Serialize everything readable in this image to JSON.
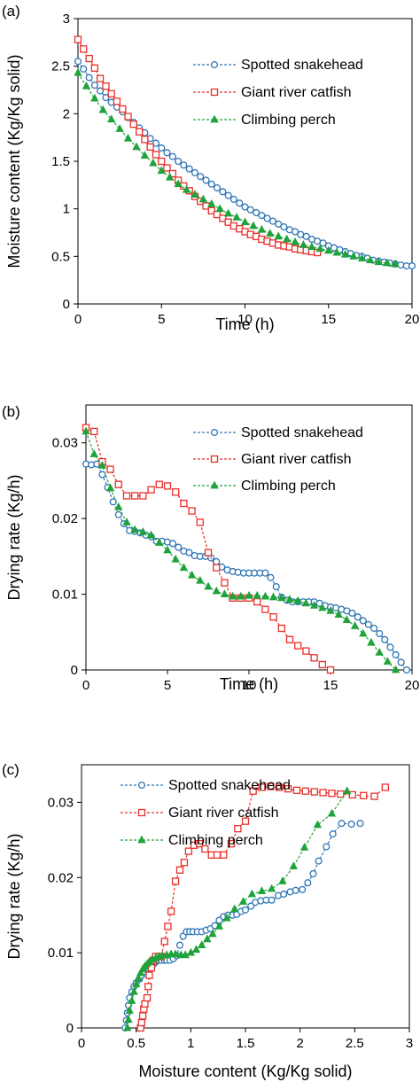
{
  "series_styles": [
    {
      "name": "Spotted snakehead",
      "color": "#2E75B6",
      "marker": "circle"
    },
    {
      "name": "Giant river catfish",
      "color": "#E8302A",
      "marker": "square"
    },
    {
      "name": "Climbing perch",
      "color": "#1FA33B",
      "marker": "triangle"
    }
  ],
  "chart_data": [
    {
      "panel": "(a)",
      "type": "line",
      "xlabel": "Time (h)",
      "ylabel": "Moisture content (Kg/Kg solid)",
      "xlim": [
        0,
        20
      ],
      "ylim": [
        0,
        3
      ],
      "xticks": [
        "0",
        "5",
        "10",
        "15",
        "20"
      ],
      "yticks": [
        "0",
        "0.5",
        "1",
        "1.5",
        "2",
        "2.5",
        "3"
      ],
      "legend": "top-right",
      "grid": false,
      "series": [
        {
          "name": "Spotted snakehead",
          "x": [
            0,
            0.33,
            0.67,
            1,
            1.33,
            1.67,
            2,
            2.33,
            2.67,
            3,
            3.33,
            3.67,
            4,
            4.33,
            4.67,
            5,
            5.33,
            5.67,
            6,
            6.33,
            6.67,
            7,
            7.33,
            7.67,
            8,
            8.33,
            8.67,
            9,
            9.33,
            9.67,
            10,
            10.33,
            10.67,
            11,
            11.33,
            11.67,
            12,
            12.33,
            12.67,
            13,
            13.33,
            13.67,
            14,
            14.33,
            14.67,
            15,
            15.33,
            15.67,
            16,
            16.33,
            16.67,
            17,
            17.33,
            17.67,
            18,
            18.33,
            18.67,
            19,
            19.33,
            19.67,
            20
          ],
          "y": [
            2.55,
            2.47,
            2.38,
            2.3,
            2.24,
            2.17,
            2.12,
            2.07,
            2.02,
            1.96,
            1.91,
            1.85,
            1.8,
            1.74,
            1.69,
            1.64,
            1.59,
            1.55,
            1.5,
            1.46,
            1.42,
            1.38,
            1.34,
            1.3,
            1.26,
            1.22,
            1.18,
            1.14,
            1.1,
            1.06,
            1.02,
            0.99,
            0.96,
            0.93,
            0.9,
            0.87,
            0.84,
            0.81,
            0.78,
            0.76,
            0.73,
            0.71,
            0.68,
            0.66,
            0.64,
            0.61,
            0.59,
            0.57,
            0.55,
            0.53,
            0.51,
            0.5,
            0.48,
            0.46,
            0.45,
            0.44,
            0.43,
            0.42,
            0.41,
            0.4,
            0.4
          ]
        },
        {
          "name": "Giant river catfish",
          "x": [
            0,
            0.33,
            0.67,
            1,
            1.33,
            1.67,
            2,
            2.33,
            2.67,
            3,
            3.33,
            3.67,
            4,
            4.33,
            4.67,
            5,
            5.33,
            5.67,
            6,
            6.33,
            6.67,
            7,
            7.33,
            7.67,
            8,
            8.33,
            8.67,
            9,
            9.33,
            9.67,
            10,
            10.33,
            10.67,
            11,
            11.33,
            11.67,
            12,
            12.33,
            12.67,
            13,
            13.33,
            13.67,
            14,
            14.33
          ],
          "y": [
            2.78,
            2.68,
            2.58,
            2.48,
            2.37,
            2.29,
            2.21,
            2.13,
            2.05,
            1.97,
            1.89,
            1.81,
            1.73,
            1.65,
            1.57,
            1.5,
            1.43,
            1.37,
            1.3,
            1.24,
            1.19,
            1.13,
            1.08,
            1.03,
            0.98,
            0.94,
            0.9,
            0.86,
            0.82,
            0.79,
            0.76,
            0.73,
            0.71,
            0.68,
            0.66,
            0.64,
            0.62,
            0.61,
            0.6,
            0.58,
            0.57,
            0.56,
            0.55,
            0.54
          ]
        },
        {
          "name": "Climbing perch",
          "x": [
            0,
            0.5,
            1,
            1.5,
            2,
            2.5,
            3,
            3.5,
            4,
            4.5,
            5,
            5.5,
            6,
            6.5,
            7,
            7.5,
            8,
            8.5,
            9,
            9.5,
            10,
            10.5,
            11,
            11.5,
            12,
            12.5,
            13,
            13.5,
            14,
            14.5,
            15,
            15.5,
            16,
            16.5,
            17,
            17.5,
            18,
            18.5,
            19
          ],
          "y": [
            2.43,
            2.29,
            2.16,
            2.04,
            1.94,
            1.84,
            1.74,
            1.65,
            1.56,
            1.48,
            1.4,
            1.33,
            1.26,
            1.2,
            1.15,
            1.1,
            1.05,
            1.0,
            0.95,
            0.91,
            0.86,
            0.82,
            0.78,
            0.74,
            0.71,
            0.68,
            0.65,
            0.62,
            0.6,
            0.58,
            0.56,
            0.54,
            0.52,
            0.5,
            0.48,
            0.46,
            0.44,
            0.43,
            0.42
          ]
        }
      ]
    },
    {
      "panel": "(b)",
      "type": "line",
      "xlabel": "Time (h)",
      "ylabel": "Drying rate (Kg/h)",
      "xlim": [
        0,
        20
      ],
      "ylim": [
        0,
        0.035
      ],
      "xticks": [
        "0",
        "5",
        "10",
        "15",
        "20"
      ],
      "yticks": [
        "0",
        "0.01",
        "0.02",
        "0.03"
      ],
      "legend": "top-right",
      "grid": false,
      "series": [
        {
          "name": "Spotted snakehead",
          "x": [
            0,
            0.33,
            0.67,
            1,
            1.33,
            1.67,
            2,
            2.33,
            2.67,
            3,
            3.33,
            3.67,
            4,
            4.33,
            4.67,
            5,
            5.33,
            5.67,
            6,
            6.33,
            6.67,
            7,
            7.33,
            7.67,
            8,
            8.33,
            8.67,
            9,
            9.33,
            9.67,
            10,
            10.33,
            10.67,
            11,
            11.33,
            11.67,
            12,
            12.33,
            12.67,
            13,
            13.33,
            13.67,
            14,
            14.33,
            14.67,
            15,
            15.33,
            15.67,
            16,
            16.33,
            16.67,
            17,
            17.33,
            17.67,
            18,
            18.33,
            18.67,
            19,
            19.33,
            19.67
          ],
          "y": [
            0.0272,
            0.0271,
            0.0272,
            0.0258,
            0.0241,
            0.0222,
            0.0205,
            0.0193,
            0.0184,
            0.0183,
            0.0181,
            0.0178,
            0.0176,
            0.017,
            0.017,
            0.0169,
            0.0167,
            0.0162,
            0.0157,
            0.0155,
            0.0151,
            0.015,
            0.015,
            0.0148,
            0.0143,
            0.0136,
            0.0132,
            0.013,
            0.0129,
            0.0128,
            0.0128,
            0.0128,
            0.0128,
            0.0128,
            0.0122,
            0.011,
            0.0096,
            0.0092,
            0.009,
            0.009,
            0.009,
            0.009,
            0.009,
            0.0088,
            0.0085,
            0.0083,
            0.0082,
            0.008,
            0.0078,
            0.0075,
            0.007,
            0.0065,
            0.006,
            0.0055,
            0.0048,
            0.004,
            0.003,
            0.002,
            0.001,
            0
          ]
        },
        {
          "name": "Giant river catfish",
          "x": [
            0,
            0.5,
            1,
            1.5,
            2,
            2.5,
            3,
            3.5,
            4,
            4.5,
            5,
            5.5,
            6,
            6.5,
            7,
            7.5,
            8,
            8.5,
            9,
            9.5,
            10,
            10.5,
            11,
            11.5,
            12,
            12.5,
            13,
            13.5,
            14,
            14.5,
            15
          ],
          "y": [
            0.032,
            0.0315,
            0.0275,
            0.0265,
            0.0245,
            0.023,
            0.023,
            0.023,
            0.0238,
            0.0245,
            0.0243,
            0.0235,
            0.022,
            0.021,
            0.0195,
            0.0155,
            0.0135,
            0.0115,
            0.0095,
            0.0095,
            0.0095,
            0.009,
            0.008,
            0.007,
            0.0055,
            0.004,
            0.0032,
            0.0025,
            0.0016,
            0.0007,
            0
          ]
        },
        {
          "name": "Climbing perch",
          "x": [
            0,
            0.5,
            1,
            1.5,
            2,
            2.5,
            3,
            3.5,
            4,
            4.5,
            5,
            5.5,
            6,
            6.5,
            7,
            7.5,
            8,
            8.5,
            9,
            9.5,
            10,
            10.5,
            11,
            11.5,
            12,
            12.5,
            13,
            13.5,
            14,
            14.5,
            15,
            15.5,
            16,
            16.5,
            17,
            17.5,
            18,
            18.5,
            19
          ],
          "y": [
            0.0315,
            0.0285,
            0.027,
            0.024,
            0.0215,
            0.0195,
            0.0185,
            0.0182,
            0.0178,
            0.0168,
            0.0158,
            0.0146,
            0.0135,
            0.0125,
            0.0118,
            0.011,
            0.0104,
            0.01,
            0.0097,
            0.0097,
            0.0098,
            0.0098,
            0.0097,
            0.0096,
            0.0095,
            0.0093,
            0.0091,
            0.0088,
            0.0085,
            0.0082,
            0.0078,
            0.0073,
            0.0066,
            0.0058,
            0.0048,
            0.0036,
            0.0023,
            0.0011,
            0
          ]
        }
      ]
    },
    {
      "panel": "(c)",
      "type": "line",
      "xlabel": "Moisture content (Kg/Kg solid)",
      "ylabel": "Drying rate (Kg/h)",
      "xlim": [
        0,
        3
      ],
      "ylim": [
        0,
        0.035
      ],
      "xticks": [
        "0",
        "0.5",
        "1",
        "1.5",
        "2",
        "2.5",
        "3"
      ],
      "yticks": [
        "0",
        "0.01",
        "0.02",
        "0.03"
      ],
      "legend": "top-left",
      "grid": false,
      "series": [
        {
          "name": "Spotted snakehead",
          "x": [
            0.4,
            0.41,
            0.42,
            0.43,
            0.44,
            0.46,
            0.48,
            0.5,
            0.53,
            0.55,
            0.57,
            0.59,
            0.61,
            0.64,
            0.66,
            0.68,
            0.71,
            0.73,
            0.76,
            0.78,
            0.81,
            0.84,
            0.87,
            0.9,
            0.93,
            0.96,
            0.99,
            1.02,
            1.06,
            1.1,
            1.14,
            1.18,
            1.22,
            1.26,
            1.3,
            1.34,
            1.38,
            1.42,
            1.46,
            1.5,
            1.55,
            1.59,
            1.64,
            1.69,
            1.74,
            1.8,
            1.85,
            1.91,
            1.96,
            2.02,
            2.07,
            2.12,
            2.17,
            2.24,
            2.3,
            2.38,
            2.47,
            2.55
          ],
          "y": [
            0,
            0.001,
            0.002,
            0.003,
            0.004,
            0.0048,
            0.0055,
            0.006,
            0.0065,
            0.007,
            0.0075,
            0.0078,
            0.008,
            0.0082,
            0.0085,
            0.0088,
            0.009,
            0.009,
            0.009,
            0.009,
            0.009,
            0.0092,
            0.0096,
            0.011,
            0.0122,
            0.0128,
            0.0128,
            0.0128,
            0.0128,
            0.0128,
            0.013,
            0.0132,
            0.0136,
            0.0143,
            0.0148,
            0.015,
            0.015,
            0.0151,
            0.0155,
            0.0157,
            0.0162,
            0.0167,
            0.0169,
            0.017,
            0.017,
            0.0176,
            0.0178,
            0.0181,
            0.0183,
            0.0184,
            0.0193,
            0.0205,
            0.0222,
            0.0241,
            0.0258,
            0.0272,
            0.0271,
            0.0272
          ]
        },
        {
          "name": "Giant river catfish",
          "x": [
            0.54,
            0.55,
            0.56,
            0.57,
            0.58,
            0.6,
            0.61,
            0.62,
            0.64,
            0.66,
            0.68,
            0.71,
            0.73,
            0.76,
            0.79,
            0.82,
            0.86,
            0.9,
            0.94,
            0.98,
            1.03,
            1.08,
            1.13,
            1.19,
            1.24,
            1.3,
            1.37,
            1.43,
            1.5,
            1.57,
            1.65,
            1.73,
            1.81,
            1.89,
            1.97,
            2.05,
            2.13,
            2.21,
            2.29,
            2.37,
            2.48,
            2.58,
            2.68,
            2.78
          ],
          "y": [
            0,
            0.0007,
            0.0016,
            0.0025,
            0.0032,
            0.004,
            0.0055,
            0.007,
            0.008,
            0.009,
            0.0095,
            0.0095,
            0.0095,
            0.0115,
            0.0135,
            0.0155,
            0.0195,
            0.021,
            0.022,
            0.0235,
            0.0243,
            0.0245,
            0.0238,
            0.023,
            0.023,
            0.023,
            0.0245,
            0.0265,
            0.0275,
            0.0315,
            0.032,
            0.0321,
            0.032,
            0.0318,
            0.0316,
            0.0315,
            0.0314,
            0.0313,
            0.0312,
            0.0311,
            0.031,
            0.0309,
            0.0308,
            0.032
          ]
        },
        {
          "name": "Climbing perch",
          "x": [
            0.42,
            0.43,
            0.44,
            0.46,
            0.48,
            0.5,
            0.52,
            0.54,
            0.56,
            0.58,
            0.6,
            0.62,
            0.65,
            0.68,
            0.71,
            0.74,
            0.78,
            0.82,
            0.86,
            0.91,
            0.95,
            1.0,
            1.05,
            1.1,
            1.15,
            1.2,
            1.26,
            1.33,
            1.4,
            1.48,
            1.56,
            1.65,
            1.74,
            1.84,
            1.94,
            2.04,
            2.16,
            2.29,
            2.43
          ],
          "y": [
            0,
            0.0011,
            0.0023,
            0.0036,
            0.0048,
            0.0058,
            0.0066,
            0.0073,
            0.0078,
            0.0082,
            0.0085,
            0.0088,
            0.0091,
            0.0093,
            0.0095,
            0.0096,
            0.0097,
            0.0098,
            0.0098,
            0.0097,
            0.0097,
            0.01,
            0.0104,
            0.011,
            0.0118,
            0.0125,
            0.0135,
            0.0146,
            0.0158,
            0.0168,
            0.0178,
            0.0182,
            0.0185,
            0.0195,
            0.0215,
            0.024,
            0.027,
            0.0285,
            0.0315
          ]
        }
      ]
    }
  ]
}
